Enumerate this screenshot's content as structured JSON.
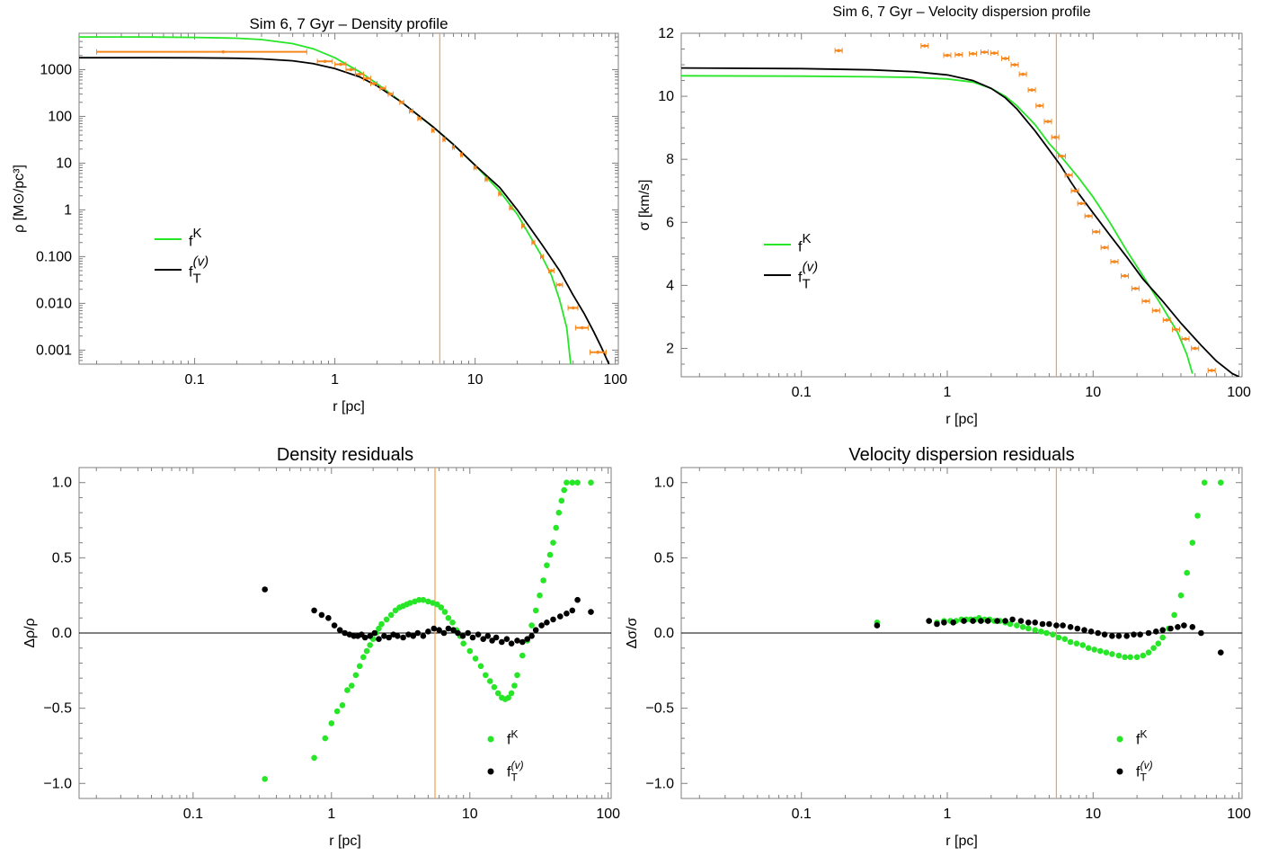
{
  "colors": {
    "green": "#27e627",
    "black": "#000000",
    "orange": "#f5871f",
    "vline": "#f5a04a"
  },
  "legend_labels": {
    "fk": "f",
    "fk_sup": "K",
    "ft": "f",
    "ft_sub": "T",
    "ft_sup": "(v)"
  },
  "chart_data": [
    {
      "type": "line",
      "title": "Sim 6, 7 Gyr – Density profile",
      "xlabel": "r [pc]",
      "ylabel": "ρ [M⊙/pc³]",
      "xscale": "log",
      "yscale": "log",
      "xlim": [
        0.015,
        105
      ],
      "ylim": [
        0.0005,
        6000
      ],
      "vline_x": 5.6,
      "x_ticks": [
        {
          "v": 0.1,
          "l": "0.1"
        },
        {
          "v": 1,
          "l": "1"
        },
        {
          "v": 10,
          "l": "10"
        },
        {
          "v": 100,
          "l": "100"
        }
      ],
      "y_ticks": [
        {
          "v": 1000,
          "l": "1000"
        },
        {
          "v": 100,
          "l": "100"
        },
        {
          "v": 10,
          "l": "10"
        },
        {
          "v": 1,
          "l": "1"
        },
        {
          "v": 0.1,
          "l": "0.100"
        },
        {
          "v": 0.01,
          "l": "0.010"
        },
        {
          "v": 0.001,
          "l": "0.001"
        }
      ],
      "legend": "center-left",
      "series": [
        {
          "name": "fK",
          "style": "line",
          "color": "green",
          "x": [
            0.015,
            0.05,
            0.1,
            0.2,
            0.3,
            0.5,
            0.7,
            1,
            1.5,
            2,
            3,
            5,
            7,
            10,
            15,
            20,
            30,
            35,
            40,
            45,
            48
          ],
          "y": [
            5000,
            4980,
            4900,
            4700,
            4400,
            3600,
            2800,
            1800,
            900,
            500,
            200,
            60,
            25,
            9,
            2.5,
            0.8,
            0.1,
            0.04,
            0.012,
            0.003,
            0.0005
          ]
        },
        {
          "name": "fT(v)",
          "style": "line",
          "color": "black",
          "x": [
            0.015,
            0.05,
            0.1,
            0.2,
            0.3,
            0.5,
            0.7,
            1,
            1.5,
            2,
            3,
            5,
            7,
            10,
            15,
            20,
            30,
            40,
            50,
            60,
            70,
            80,
            90
          ],
          "y": [
            1800,
            1795,
            1790,
            1750,
            1700,
            1550,
            1350,
            1050,
            700,
            450,
            200,
            60,
            25,
            9,
            3,
            1,
            0.18,
            0.05,
            0.015,
            0.006,
            0.0025,
            0.0011,
            0.0005
          ]
        },
        {
          "name": "",
          "style": "errorbars",
          "color": "orange",
          "x": [
            0.16,
            0.85,
            1.1,
            1.3,
            1.5,
            1.7,
            1.9,
            2.2,
            2.5,
            3,
            3.5,
            4,
            5,
            6,
            7,
            8,
            10,
            12,
            15,
            18,
            22,
            26,
            30,
            35,
            40,
            50,
            58,
            75
          ],
          "y": [
            2400,
            1500,
            1300,
            1000,
            800,
            650,
            500,
            400,
            300,
            200,
            130,
            90,
            50,
            32,
            22,
            15,
            8,
            4.5,
            2.2,
            1.1,
            0.45,
            0.2,
            0.1,
            0.05,
            0.025,
            0.008,
            0.003,
            0.0009
          ],
          "xerr_lo": [
            0.02,
            0.75,
            1.0,
            1.2,
            1.4,
            1.6,
            1.8,
            2.1,
            2.4,
            2.9,
            3.4,
            3.9,
            4.9,
            5.9,
            6.9,
            7.9,
            9.8,
            11.8,
            14.7,
            17.6,
            21.5,
            25.4,
            29.3,
            33.5,
            38,
            46,
            52,
            66
          ],
          "xerr_hi": [
            0.63,
            0.96,
            1.2,
            1.4,
            1.6,
            1.8,
            2.0,
            2.3,
            2.6,
            3.1,
            3.6,
            4.1,
            5.1,
            6.1,
            7.1,
            8.1,
            10.2,
            12.2,
            15.3,
            18.4,
            22.5,
            26.6,
            30.7,
            36.5,
            42,
            54,
            64,
            86
          ]
        }
      ]
    },
    {
      "type": "line",
      "title": "Sim 6, 7 Gyr – Velocity dispersion profile",
      "xlabel": "r [pc]",
      "ylabel": "σ [km/s]",
      "xscale": "log",
      "yscale": "linear",
      "xlim": [
        0.015,
        105
      ],
      "ylim": [
        1.1,
        12
      ],
      "vline_x": 5.6,
      "x_ticks": [
        {
          "v": 0.1,
          "l": "0.1"
        },
        {
          "v": 1,
          "l": "1"
        },
        {
          "v": 10,
          "l": "10"
        },
        {
          "v": 100,
          "l": "100"
        }
      ],
      "y_ticks": [
        {
          "v": 2,
          "l": "2"
        },
        {
          "v": 4,
          "l": "4"
        },
        {
          "v": 6,
          "l": "6"
        },
        {
          "v": 8,
          "l": "8"
        },
        {
          "v": 10,
          "l": "10"
        },
        {
          "v": 12,
          "l": "12"
        }
      ],
      "legend": "center-left",
      "series": [
        {
          "name": "fK",
          "style": "line",
          "color": "green",
          "x": [
            0.015,
            0.1,
            0.3,
            0.6,
            1,
            1.5,
            2,
            2.5,
            3,
            4,
            5,
            6,
            8,
            10,
            13,
            17,
            22,
            30,
            38,
            44,
            48
          ],
          "y": [
            10.65,
            10.64,
            10.62,
            10.6,
            10.55,
            10.45,
            10.25,
            10.0,
            9.7,
            9.1,
            8.5,
            8.1,
            7.4,
            6.8,
            6.0,
            5.1,
            4.3,
            3.3,
            2.5,
            1.8,
            1.2
          ]
        },
        {
          "name": "fT(v)",
          "style": "line",
          "color": "black",
          "x": [
            0.015,
            0.1,
            0.3,
            0.6,
            1,
            1.5,
            2,
            2.5,
            3,
            4,
            5,
            6,
            7,
            8,
            10,
            13,
            17,
            22,
            30,
            40,
            55,
            70,
            90,
            100
          ],
          "y": [
            10.9,
            10.88,
            10.84,
            10.78,
            10.68,
            10.5,
            10.25,
            9.95,
            9.6,
            8.9,
            8.3,
            7.8,
            7.3,
            6.9,
            6.3,
            5.6,
            4.9,
            4.2,
            3.5,
            2.8,
            2.1,
            1.6,
            1.2,
            1.1
          ]
        },
        {
          "name": "",
          "style": "errorbars",
          "color": "orange",
          "x": [
            0.18,
            0.7,
            1,
            1.2,
            1.5,
            1.8,
            2.1,
            2.5,
            2.9,
            3.3,
            3.8,
            4.3,
            4.9,
            5.5,
            6.1,
            6.8,
            7.5,
            8.3,
            9.3,
            10.5,
            12,
            14,
            16.5,
            19.5,
            23,
            27,
            32,
            37,
            43,
            50,
            65
          ],
          "y": [
            11.45,
            11.6,
            11.3,
            11.32,
            11.35,
            11.4,
            11.37,
            11.2,
            11.0,
            10.7,
            10.2,
            9.7,
            9.2,
            8.7,
            8.1,
            7.5,
            7.0,
            6.6,
            6.2,
            5.7,
            5.2,
            4.75,
            4.3,
            3.9,
            3.5,
            3.2,
            2.9,
            2.6,
            2.3,
            2.0,
            1.3
          ]
        }
      ]
    },
    {
      "type": "scatter",
      "title": "Density residuals",
      "xlabel": "r [pc]",
      "ylabel": "Δρ/ρ",
      "xscale": "log",
      "yscale": "linear",
      "xlim": [
        0.015,
        105
      ],
      "ylim": [
        -1.1,
        1.1
      ],
      "vline_x": 5.6,
      "hline_y": 0,
      "x_ticks": [
        {
          "v": 0.1,
          "l": "0.1"
        },
        {
          "v": 1,
          "l": "1"
        },
        {
          "v": 10,
          "l": "10"
        },
        {
          "v": 100,
          "l": "100"
        }
      ],
      "y_ticks": [
        {
          "v": 1,
          "l": "1.0"
        },
        {
          "v": 0.5,
          "l": "0.5"
        },
        {
          "v": 0,
          "l": "0.0"
        },
        {
          "v": -0.5,
          "l": "−0.5"
        },
        {
          "v": -1,
          "l": "−1.0"
        }
      ],
      "legend": "bottom-right",
      "series": [
        {
          "name": "fK",
          "style": "points",
          "color": "green",
          "x": [
            0.33,
            0.75,
            0.9,
            1.0,
            1.1,
            1.2,
            1.3,
            1.4,
            1.5,
            1.6,
            1.7,
            1.8,
            1.9,
            2.0,
            2.1,
            2.2,
            2.3,
            2.5,
            2.7,
            2.9,
            3.1,
            3.3,
            3.5,
            3.7,
            4.0,
            4.3,
            4.6,
            5.0,
            5.4,
            5.8,
            6.2,
            6.6,
            7.0,
            7.5,
            8.0,
            8.5,
            9.0,
            10,
            11,
            12,
            13,
            14,
            15,
            16,
            17,
            18,
            19,
            20,
            21,
            22,
            24,
            26,
            28,
            30,
            32,
            34,
            36,
            38,
            40,
            42,
            44,
            46,
            48,
            50,
            55,
            60,
            75
          ],
          "y": [
            -0.97,
            -0.83,
            -0.7,
            -0.6,
            -0.52,
            -0.48,
            -0.38,
            -0.35,
            -0.28,
            -0.22,
            -0.16,
            -0.12,
            -0.08,
            -0.04,
            0.0,
            0.03,
            0.06,
            0.09,
            0.12,
            0.15,
            0.17,
            0.18,
            0.19,
            0.2,
            0.21,
            0.22,
            0.22,
            0.21,
            0.2,
            0.19,
            0.17,
            0.14,
            0.1,
            0.07,
            0.02,
            -0.02,
            -0.07,
            -0.12,
            -0.17,
            -0.22,
            -0.28,
            -0.32,
            -0.36,
            -0.4,
            -0.43,
            -0.44,
            -0.43,
            -0.4,
            -0.35,
            -0.28,
            -0.15,
            -0.05,
            0.05,
            0.15,
            0.25,
            0.35,
            0.45,
            0.52,
            0.6,
            0.7,
            0.8,
            0.88,
            0.95,
            1.0,
            1.0,
            1.0,
            1.0
          ]
        },
        {
          "name": "fT(v)",
          "style": "points",
          "color": "black",
          "x": [
            0.33,
            0.75,
            0.85,
            0.95,
            1.05,
            1.15,
            1.25,
            1.35,
            1.45,
            1.55,
            1.65,
            1.75,
            1.9,
            2.05,
            2.2,
            2.4,
            2.6,
            2.8,
            3.0,
            3.3,
            3.6,
            3.9,
            4.2,
            4.6,
            5.0,
            5.5,
            6.0,
            6.5,
            7.0,
            7.6,
            8.2,
            8.9,
            9.7,
            10.5,
            11.5,
            12.5,
            13.5,
            14.5,
            15.5,
            17,
            18.5,
            20,
            22,
            24,
            26,
            28,
            30,
            33,
            36,
            40,
            45,
            50,
            55,
            60,
            75
          ],
          "y": [
            0.29,
            0.15,
            0.12,
            0.1,
            0.05,
            0.02,
            0.0,
            -0.01,
            -0.02,
            -0.02,
            -0.01,
            -0.03,
            -0.02,
            0.0,
            -0.04,
            -0.02,
            -0.03,
            -0.01,
            -0.02,
            -0.03,
            -0.01,
            -0.02,
            0.0,
            -0.02,
            0.01,
            0.03,
            0.02,
            0.0,
            0.03,
            0.02,
            0.0,
            -0.02,
            0.0,
            -0.03,
            -0.01,
            -0.04,
            -0.02,
            -0.05,
            -0.03,
            -0.06,
            -0.04,
            -0.07,
            -0.05,
            -0.06,
            -0.04,
            -0.02,
            0.02,
            0.05,
            0.07,
            0.09,
            0.11,
            0.13,
            0.15,
            0.22,
            0.14
          ]
        }
      ]
    },
    {
      "type": "scatter",
      "title": "Velocity dispersion residuals",
      "xlabel": "r [pc]",
      "ylabel": "Δσ/σ",
      "xscale": "log",
      "yscale": "linear",
      "xlim": [
        0.015,
        105
      ],
      "ylim": [
        -1.1,
        1.1
      ],
      "vline_x": 5.6,
      "hline_y": 0,
      "x_ticks": [
        {
          "v": 0.1,
          "l": "0.1"
        },
        {
          "v": 1,
          "l": "1"
        },
        {
          "v": 10,
          "l": "10"
        },
        {
          "v": 100,
          "l": "100"
        }
      ],
      "y_ticks": [
        {
          "v": 1,
          "l": "1.0"
        },
        {
          "v": 0.5,
          "l": "0.5"
        },
        {
          "v": 0,
          "l": "0.0"
        },
        {
          "v": -0.5,
          "l": "−0.5"
        },
        {
          "v": -1,
          "l": "−1.0"
        }
      ],
      "legend": "bottom-right",
      "series": [
        {
          "name": "fK",
          "style": "points",
          "color": "green",
          "x": [
            0.33,
            0.75,
            0.85,
            0.95,
            1.05,
            1.15,
            1.25,
            1.35,
            1.45,
            1.55,
            1.65,
            1.8,
            1.95,
            2.1,
            2.3,
            2.5,
            2.7,
            3.0,
            3.3,
            3.6,
            4.0,
            4.4,
            4.8,
            5.3,
            5.8,
            6.4,
            7.0,
            7.7,
            8.5,
            9.3,
            10.2,
            11.2,
            12.3,
            13.5,
            15,
            16.5,
            18,
            20,
            22,
            24,
            26,
            28,
            30,
            33,
            36,
            40,
            44,
            48,
            52,
            58,
            75
          ],
          "y": [
            0.07,
            0.08,
            0.07,
            0.08,
            0.08,
            0.08,
            0.09,
            0.09,
            0.09,
            0.09,
            0.1,
            0.09,
            0.09,
            0.08,
            0.08,
            0.07,
            0.06,
            0.05,
            0.04,
            0.03,
            0.02,
            0.01,
            0.0,
            -0.01,
            -0.03,
            -0.04,
            -0.06,
            -0.07,
            -0.08,
            -0.1,
            -0.11,
            -0.12,
            -0.13,
            -0.14,
            -0.15,
            -0.16,
            -0.16,
            -0.16,
            -0.15,
            -0.13,
            -0.1,
            -0.07,
            -0.03,
            0.03,
            0.12,
            0.25,
            0.4,
            0.6,
            0.78,
            1.0,
            1.0
          ]
        },
        {
          "name": "fT(v)",
          "style": "points",
          "color": "black",
          "x": [
            0.33,
            0.75,
            0.85,
            0.95,
            1.1,
            1.3,
            1.5,
            1.7,
            1.9,
            2.2,
            2.5,
            2.8,
            3.2,
            3.6,
            4.0,
            4.5,
            5.0,
            5.6,
            6.2,
            7.0,
            7.8,
            8.7,
            9.7,
            10.8,
            12,
            13.5,
            15,
            17,
            19,
            21,
            24,
            27,
            30,
            34,
            38,
            42,
            48,
            55,
            75
          ],
          "y": [
            0.05,
            0.08,
            0.06,
            0.07,
            0.07,
            0.08,
            0.08,
            0.08,
            0.08,
            0.08,
            0.08,
            0.09,
            0.08,
            0.07,
            0.07,
            0.06,
            0.06,
            0.05,
            0.05,
            0.04,
            0.03,
            0.02,
            0.01,
            0.0,
            -0.01,
            -0.02,
            -0.02,
            -0.02,
            -0.01,
            -0.01,
            0.0,
            0.01,
            0.02,
            0.03,
            0.04,
            0.05,
            0.04,
            0.0,
            -0.13
          ]
        }
      ]
    }
  ]
}
